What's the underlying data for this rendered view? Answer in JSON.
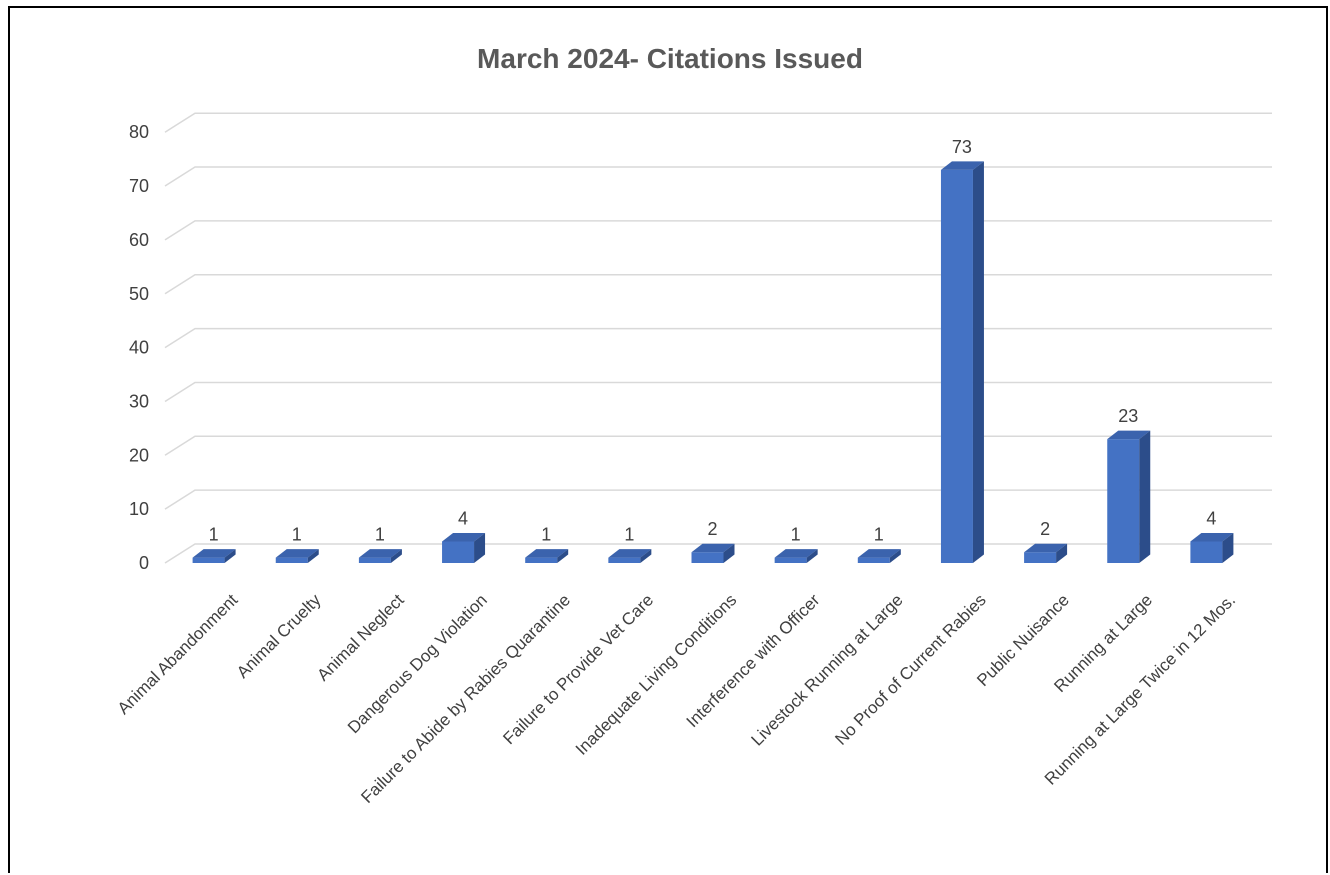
{
  "chart_data": {
    "type": "bar",
    "title": "March 2024- Citations Issued",
    "xlabel": "",
    "ylabel": "",
    "ylim": [
      0,
      80
    ],
    "yticks": [
      0,
      10,
      20,
      30,
      40,
      50,
      60,
      70,
      80
    ],
    "grid": true,
    "legend": "none",
    "bar_color": "#4472c4",
    "categories": [
      "Animal Abandonment",
      "Animal Cruelty",
      "Animal Neglect",
      "Dangerous Dog Violation",
      "Failure to Abide by Rabies Quarantine",
      "Failure to Provide Vet Care",
      "Inadequate Living Conditions",
      "Interference with Officer",
      "Livestock Running at Large",
      "No Proof of Current Rabies",
      "Public Nuisance",
      "Running at Large",
      "Running at Large Twice in 12 Mos."
    ],
    "values": [
      1,
      1,
      1,
      4,
      1,
      1,
      2,
      1,
      1,
      73,
      2,
      23,
      4
    ]
  }
}
